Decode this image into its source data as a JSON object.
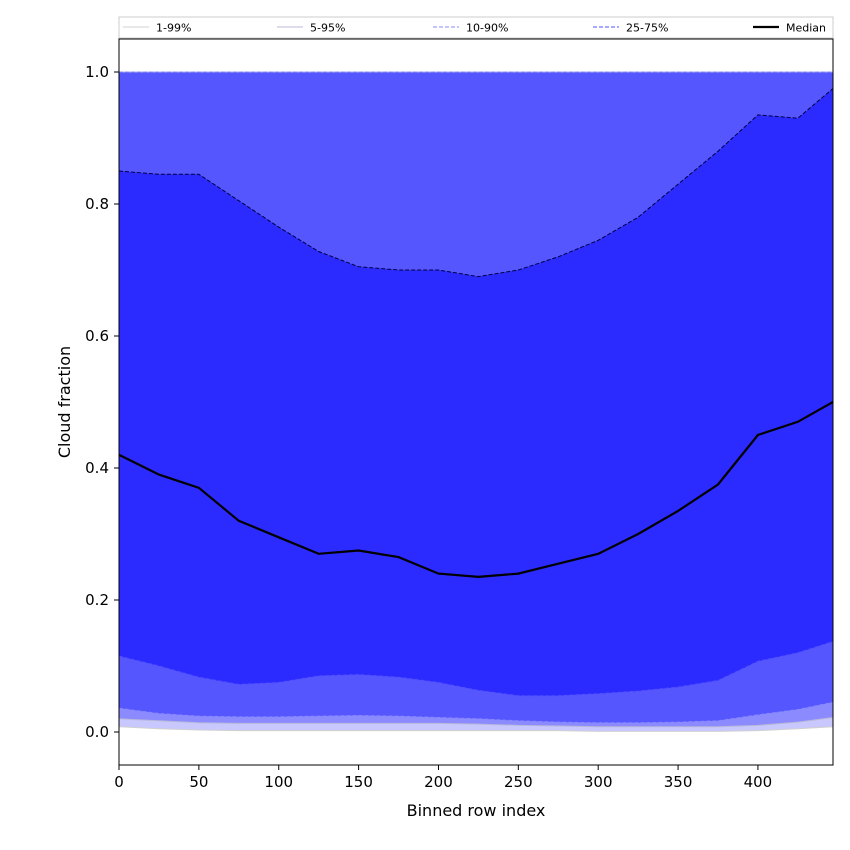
{
  "chart_data": {
    "type": "area",
    "xlabel": "Binned row index",
    "ylabel": "Cloud fraction",
    "xlim": [
      0,
      447
    ],
    "ylim": [
      -0.05,
      1.05
    ],
    "xticks": [
      0,
      50,
      100,
      150,
      200,
      250,
      300,
      350,
      400
    ],
    "yticks": [
      0.0,
      0.2,
      0.4,
      0.6,
      0.8,
      1.0
    ],
    "ytick_labels": [
      "0.0",
      "0.2",
      "0.4",
      "0.6",
      "0.8",
      "1.0"
    ],
    "grid": false,
    "legend_placement": "top",
    "x": [
      0,
      25,
      50,
      75,
      100,
      125,
      150,
      175,
      200,
      225,
      250,
      275,
      300,
      325,
      350,
      375,
      400,
      425,
      447
    ],
    "bands": [
      {
        "name": "1-99%",
        "color": "#c8c8ff",
        "line_color": "#d0d0d0",
        "line_style": "solid",
        "lower": [
          0.008,
          0.005,
          0.003,
          0.002,
          0.002,
          0.002,
          0.002,
          0.002,
          0.002,
          0.002,
          0.002,
          0.002,
          0.001,
          0.001,
          0.001,
          0.001,
          0.002,
          0.005,
          0.008
        ],
        "upper": [
          1.0,
          1.0,
          1.0,
          1.0,
          1.0,
          1.0,
          1.0,
          1.0,
          1.0,
          1.0,
          1.0,
          1.0,
          1.0,
          1.0,
          1.0,
          1.0,
          1.0,
          1.0,
          1.0
        ]
      },
      {
        "name": "5-95%",
        "color": "#8b8bff",
        "line_color": "#b8b8d8",
        "line_style": "solid",
        "lower": [
          0.02,
          0.017,
          0.014,
          0.013,
          0.013,
          0.013,
          0.013,
          0.013,
          0.013,
          0.012,
          0.01,
          0.009,
          0.008,
          0.008,
          0.008,
          0.008,
          0.01,
          0.015,
          0.022
        ],
        "upper": [
          1.0,
          1.0,
          1.0,
          1.0,
          1.0,
          1.0,
          1.0,
          1.0,
          1.0,
          1.0,
          1.0,
          1.0,
          1.0,
          1.0,
          1.0,
          1.0,
          1.0,
          1.0,
          1.0
        ]
      },
      {
        "name": "10-90%",
        "color": "#5656ff",
        "line_color": "#8888ff",
        "line_style": "dashed",
        "lower": [
          0.036,
          0.028,
          0.024,
          0.023,
          0.023,
          0.024,
          0.025,
          0.024,
          0.022,
          0.02,
          0.017,
          0.015,
          0.014,
          0.014,
          0.015,
          0.017,
          0.026,
          0.034,
          0.045
        ],
        "upper": [
          1.0,
          1.0,
          1.0,
          1.0,
          1.0,
          1.0,
          1.0,
          1.0,
          1.0,
          1.0,
          1.0,
          1.0,
          1.0,
          1.0,
          1.0,
          1.0,
          1.0,
          1.0,
          1.0
        ]
      },
      {
        "name": "25-75%",
        "color": "#2b2bff",
        "line_color": "#5050ff",
        "line_style": "dashed",
        "lower": [
          0.115,
          0.1,
          0.083,
          0.072,
          0.075,
          0.085,
          0.087,
          0.083,
          0.075,
          0.063,
          0.055,
          0.055,
          0.058,
          0.062,
          0.068,
          0.078,
          0.107,
          0.12,
          0.137
        ],
        "upper": [
          0.85,
          0.845,
          0.845,
          0.805,
          0.765,
          0.728,
          0.705,
          0.7,
          0.7,
          0.69,
          0.7,
          0.72,
          0.745,
          0.78,
          0.83,
          0.88,
          0.935,
          0.93,
          0.975
        ]
      }
    ],
    "median": {
      "name": "Median",
      "color": "#000000",
      "values": [
        0.42,
        0.39,
        0.37,
        0.32,
        0.295,
        0.27,
        0.275,
        0.265,
        0.24,
        0.235,
        0.24,
        0.255,
        0.27,
        0.3,
        0.335,
        0.375,
        0.45,
        0.47,
        0.5
      ]
    }
  }
}
